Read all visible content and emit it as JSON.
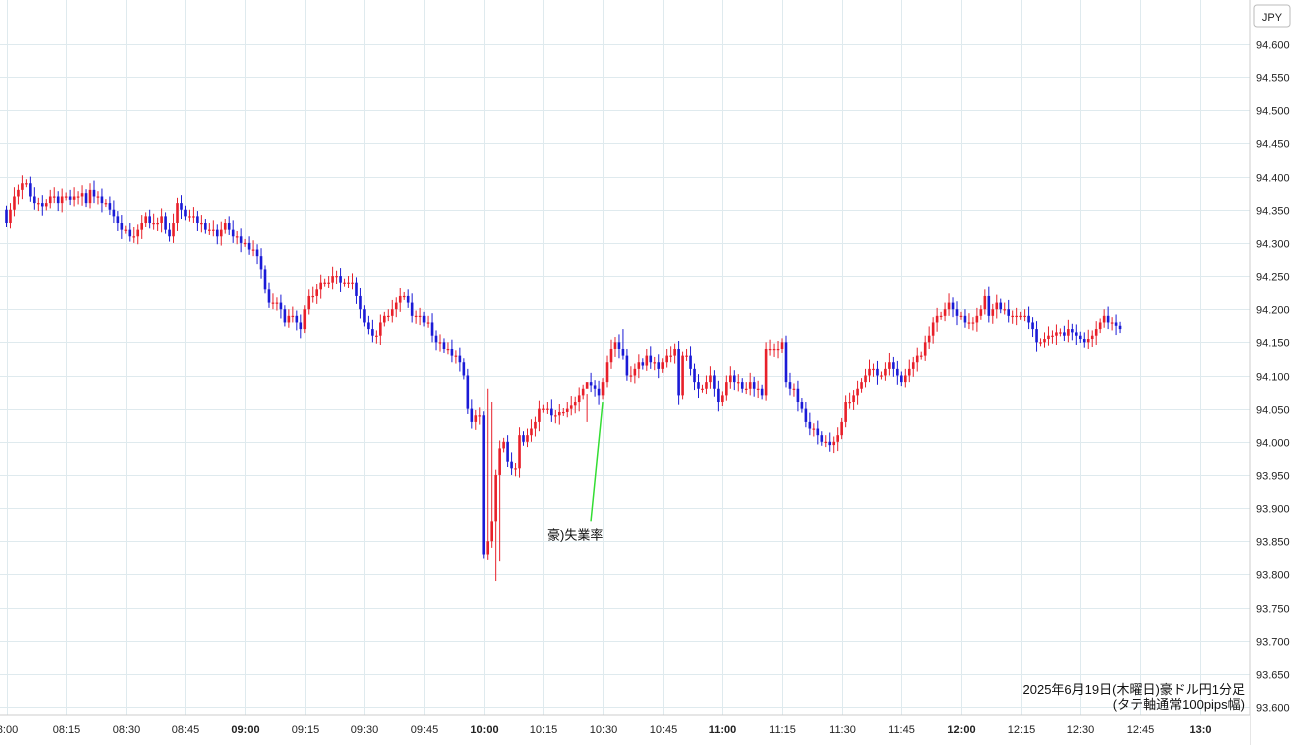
{
  "chart_data": {
    "type": "candlestick",
    "currency_label": "JPY",
    "caption": [
      "2025年6月19日(木曜日)豪ドル円1分足",
      "(タテ軸通常100pips幅)"
    ],
    "ylim": [
      93.6,
      94.6
    ],
    "y_ticks": [
      "94.600",
      "94.550",
      "94.500",
      "94.450",
      "94.400",
      "94.350",
      "94.300",
      "94.250",
      "94.200",
      "94.150",
      "94.100",
      "94.050",
      "94.000",
      "93.950",
      "93.900",
      "93.850",
      "93.800",
      "93.750",
      "93.700",
      "93.650",
      "93.600"
    ],
    "x_ticks": [
      {
        "label": "8:00",
        "minute": 0,
        "bold": false
      },
      {
        "label": "08:15",
        "minute": 15,
        "bold": false
      },
      {
        "label": "08:30",
        "minute": 30,
        "bold": false
      },
      {
        "label": "08:45",
        "minute": 45,
        "bold": false
      },
      {
        "label": "09:00",
        "minute": 60,
        "bold": true
      },
      {
        "label": "09:15",
        "minute": 75,
        "bold": false
      },
      {
        "label": "09:30",
        "minute": 90,
        "bold": false
      },
      {
        "label": "09:45",
        "minute": 105,
        "bold": false
      },
      {
        "label": "10:00",
        "minute": 120,
        "bold": true
      },
      {
        "label": "10:15",
        "minute": 135,
        "bold": false
      },
      {
        "label": "10:30",
        "minute": 150,
        "bold": false
      },
      {
        "label": "10:45",
        "minute": 165,
        "bold": false
      },
      {
        "label": "11:00",
        "minute": 180,
        "bold": true
      },
      {
        "label": "11:15",
        "minute": 195,
        "bold": false
      },
      {
        "label": "11:30",
        "minute": 210,
        "bold": false
      },
      {
        "label": "11:45",
        "minute": 225,
        "bold": false
      },
      {
        "label": "12:00",
        "minute": 240,
        "bold": true
      },
      {
        "label": "12:15",
        "minute": 255,
        "bold": false
      },
      {
        "label": "12:30",
        "minute": 270,
        "bold": false
      },
      {
        "label": "12:45",
        "minute": 285,
        "bold": false
      },
      {
        "label": "13:0",
        "minute": 300,
        "bold": true
      }
    ],
    "annotation": {
      "text": "豪)失業率",
      "minute": 150
    },
    "colors": {
      "up": "#e8202a",
      "down": "#1a1ad6",
      "grid": "#dfeaee",
      "annotation_line": "#33dd33",
      "axis": "#cccccc"
    },
    "grid": true,
    "x_start_minute": 0,
    "close": [
      94.33,
      94.35,
      94.37,
      94.38,
      94.39,
      94.39,
      94.37,
      94.36,
      94.36,
      94.355,
      94.36,
      94.37,
      94.37,
      94.36,
      94.37,
      94.37,
      94.365,
      94.37,
      94.37,
      94.375,
      94.36,
      94.38,
      94.37,
      94.37,
      94.36,
      94.36,
      94.35,
      94.34,
      94.33,
      94.32,
      94.32,
      94.31,
      94.31,
      94.32,
      94.33,
      94.34,
      94.33,
      94.33,
      94.33,
      94.34,
      94.32,
      94.31,
      94.33,
      94.36,
      94.35,
      94.34,
      94.34,
      94.34,
      94.33,
      94.33,
      94.32,
      94.32,
      94.32,
      94.31,
      94.32,
      94.33,
      94.32,
      94.31,
      94.31,
      94.3,
      94.3,
      94.29,
      94.29,
      94.28,
      94.26,
      94.23,
      94.21,
      94.21,
      94.21,
      94.2,
      94.18,
      94.19,
      94.19,
      94.18,
      94.17,
      94.2,
      94.22,
      94.22,
      94.23,
      94.24,
      94.24,
      94.24,
      94.25,
      94.25,
      94.24,
      94.24,
      94.24,
      94.24,
      94.22,
      94.2,
      94.18,
      94.17,
      94.16,
      94.16,
      94.18,
      94.19,
      94.19,
      94.2,
      94.21,
      94.22,
      94.22,
      94.21,
      94.19,
      94.19,
      94.19,
      94.18,
      94.18,
      94.16,
      94.15,
      94.15,
      94.14,
      94.14,
      94.13,
      94.13,
      94.12,
      94.1,
      94.05,
      94.03,
      94.04,
      94.04,
      93.83,
      93.85,
      93.88,
      93.95,
      93.99,
      94.0,
      93.97,
      93.96,
      93.96,
      94.01,
      94.0,
      94.01,
      94.02,
      94.03,
      94.05,
      94.05,
      94.05,
      94.04,
      94.04,
      94.045,
      94.045,
      94.05,
      94.055,
      94.06,
      94.07,
      94.08,
      94.09,
      94.085,
      94.08,
      94.07,
      94.09,
      94.12,
      94.14,
      94.15,
      94.14,
      94.13,
      94.1,
      94.1,
      94.11,
      94.12,
      94.115,
      94.13,
      94.12,
      94.12,
      94.11,
      94.12,
      94.13,
      94.13,
      94.14,
      94.07,
      94.13,
      94.13,
      94.11,
      94.09,
      94.08,
      94.08,
      94.09,
      94.1,
      94.08,
      94.06,
      94.07,
      94.09,
      94.1,
      94.09,
      94.09,
      94.08,
      94.08,
      94.09,
      94.08,
      94.08,
      94.07,
      94.14,
      94.14,
      94.14,
      94.14,
      94.15,
      94.09,
      94.08,
      94.08,
      94.06,
      94.05,
      94.03,
      94.02,
      94.02,
      94.01,
      94.0,
      94.0,
      93.995,
      94.0,
      94.01,
      94.03,
      94.06,
      94.06,
      94.07,
      94.08,
      94.09,
      94.1,
      94.11,
      94.11,
      94.1,
      94.1,
      94.11,
      94.12,
      94.11,
      94.1,
      94.09,
      94.1,
      94.11,
      94.12,
      94.13,
      94.13,
      94.15,
      94.16,
      94.18,
      94.19,
      94.19,
      94.2,
      94.21,
      94.2,
      94.19,
      94.19,
      94.18,
      94.18,
      94.18,
      94.19,
      94.2,
      94.22,
      94.19,
      94.2,
      94.21,
      94.2,
      94.2,
      94.19,
      94.19,
      94.19,
      94.19,
      94.19,
      94.18,
      94.17,
      94.15,
      94.15,
      94.155,
      94.16,
      94.16,
      94.165,
      94.165,
      94.16,
      94.17,
      94.165,
      94.16,
      94.155,
      94.15,
      94.155,
      94.16,
      94.17,
      94.18,
      94.19,
      94.18,
      94.18,
      94.175,
      94.17
    ],
    "open": [
      94.35
    ],
    "low_override": {
      "123": 93.79,
      "124": 93.82
    },
    "high_override": {
      "121": 94.08,
      "122": 94.06,
      "146": 94.03,
      "155": 94.17
    }
  }
}
